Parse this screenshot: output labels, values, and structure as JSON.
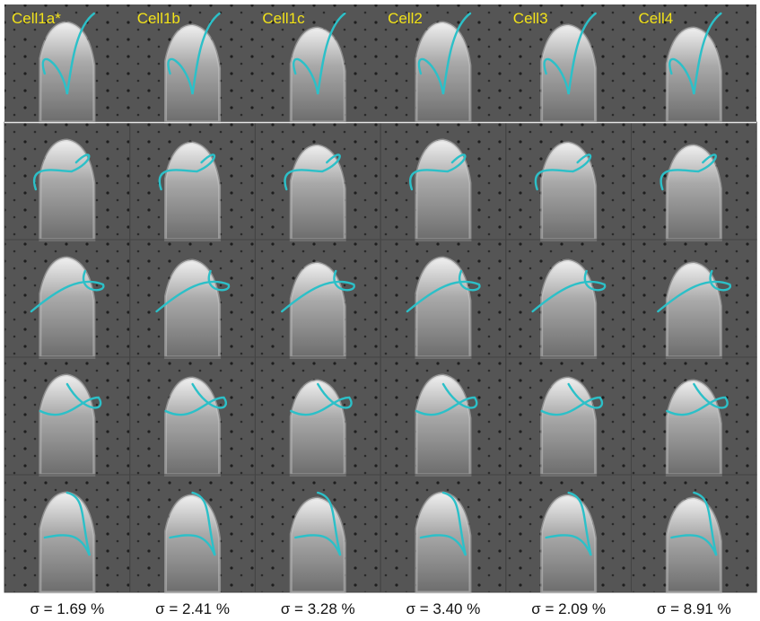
{
  "columns": [
    {
      "label": "Cell1a*",
      "sigma": "σ = 1.69 %"
    },
    {
      "label": "Cell1b",
      "sigma": "σ = 2.41 %"
    },
    {
      "label": "Cell1c",
      "sigma": "σ = 3.28 %"
    },
    {
      "label": "Cell2",
      "sigma": "σ = 3.40 %"
    },
    {
      "label": "Cell3",
      "sigma": "σ = 2.09 %"
    },
    {
      "label": "Cell4",
      "sigma": "σ = 8.91 %"
    }
  ]
}
